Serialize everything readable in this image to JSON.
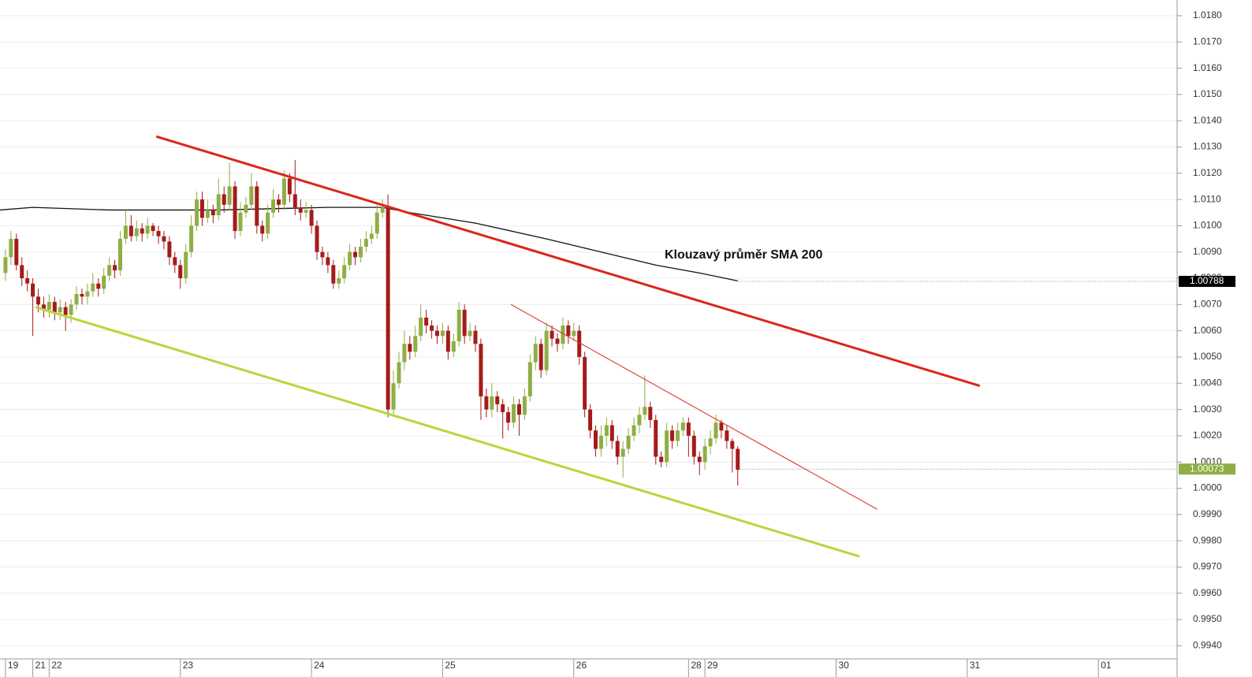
{
  "chart_data": {
    "type": "candlestick",
    "annotation": "Klouzavý průměr SMA 200",
    "xlim": [
      0,
      215.4
    ],
    "ylim": [
      0.9935,
      1.0186
    ],
    "xticks": [
      {
        "value": 1,
        "label": "19"
      },
      {
        "value": 6,
        "label": "21"
      },
      {
        "value": 9,
        "label": "22"
      },
      {
        "value": 33,
        "label": "23"
      },
      {
        "value": 57,
        "label": "24"
      },
      {
        "value": 81,
        "label": "25"
      },
      {
        "value": 105,
        "label": "26"
      },
      {
        "value": 126,
        "label": "28"
      },
      {
        "value": 129,
        "label": "29"
      },
      {
        "value": 153,
        "label": "30"
      },
      {
        "value": 177,
        "label": "31"
      },
      {
        "value": 201,
        "label": "01"
      }
    ],
    "yticks": [
      {
        "value": 1.018,
        "label": "1.0180"
      },
      {
        "value": 1.017,
        "label": "1.0170"
      },
      {
        "value": 1.016,
        "label": "1.0160"
      },
      {
        "value": 1.015,
        "label": "1.0150"
      },
      {
        "value": 1.014,
        "label": "1.0140"
      },
      {
        "value": 1.013,
        "label": "1.0130"
      },
      {
        "value": 1.012,
        "label": "1.0120"
      },
      {
        "value": 1.011,
        "label": "1.0110"
      },
      {
        "value": 1.01,
        "label": "1.0100"
      },
      {
        "value": 1.009,
        "label": "1.0090"
      },
      {
        "value": 1.008,
        "label": "1.0080"
      },
      {
        "value": 1.007,
        "label": "1.0070"
      },
      {
        "value": 1.006,
        "label": "1.0060"
      },
      {
        "value": 1.005,
        "label": "1.0050"
      },
      {
        "value": 1.004,
        "label": "1.0040"
      },
      {
        "value": 1.003,
        "label": "1.0030"
      },
      {
        "value": 1.002,
        "label": "1.0020"
      },
      {
        "value": 1.001,
        "label": "1.0010"
      },
      {
        "value": 1.0,
        "label": "1.0000"
      },
      {
        "value": 0.999,
        "label": "0.9990"
      },
      {
        "value": 0.998,
        "label": "0.9980"
      },
      {
        "value": 0.997,
        "label": "0.9970"
      },
      {
        "value": 0.996,
        "label": "0.9960"
      },
      {
        "value": 0.995,
        "label": "0.9950"
      },
      {
        "value": 0.994,
        "label": "0.9940"
      }
    ],
    "grid": true,
    "up_color": "#8fae45",
    "down_color": "#a51b1b",
    "x": [
      1,
      2,
      3,
      4,
      5,
      6,
      7,
      8,
      9,
      10,
      11,
      12,
      13,
      14,
      15,
      16,
      17,
      18,
      19,
      20,
      21,
      22,
      23,
      24,
      25,
      26,
      27,
      28,
      29,
      30,
      31,
      32,
      33,
      34,
      35,
      36,
      37,
      38,
      39,
      40,
      41,
      42,
      43,
      44,
      45,
      46,
      47,
      48,
      49,
      50,
      51,
      52,
      53,
      54,
      55,
      56,
      57,
      58,
      59,
      60,
      61,
      62,
      63,
      64,
      65,
      66,
      67,
      68,
      69,
      70,
      71,
      72,
      73,
      74,
      75,
      76,
      77,
      78,
      79,
      80,
      81,
      82,
      83,
      84,
      85,
      86,
      87,
      88,
      89,
      90,
      91,
      92,
      93,
      94,
      95,
      96,
      97,
      98,
      99,
      100,
      101,
      102,
      103,
      104,
      105,
      106,
      107,
      108,
      109,
      110,
      111,
      112,
      113,
      114,
      115,
      116,
      117,
      118,
      119,
      120,
      121,
      122,
      123,
      124,
      125,
      126,
      127,
      128,
      129,
      130,
      131,
      132,
      133,
      134,
      135
    ],
    "open": [
      1.0082,
      1.0088,
      1.0095,
      1.0085,
      1.008,
      1.0078,
      1.0073,
      1.007,
      1.0068,
      1.0071,
      1.0067,
      1.0069,
      1.0066,
      1.007,
      1.0074,
      1.0073,
      1.0075,
      1.0078,
      1.0076,
      1.0081,
      1.0085,
      1.0083,
      1.0095,
      1.01,
      1.0096,
      1.0099,
      1.0097,
      1.01,
      1.0098,
      1.0096,
      1.0094,
      1.0088,
      1.0085,
      1.008,
      1.009,
      1.01,
      1.011,
      1.0103,
      1.0106,
      1.0104,
      1.0112,
      1.0108,
      1.0115,
      1.0098,
      1.0105,
      1.0108,
      1.0115,
      1.01,
      1.0097,
      1.0105,
      1.011,
      1.0108,
      1.0118,
      1.0112,
      1.0107,
      1.0105,
      1.0106,
      1.01,
      1.009,
      1.0088,
      1.0085,
      1.0078,
      1.008,
      1.0085,
      1.009,
      1.0088,
      1.0092,
      1.0095,
      1.0097,
      1.0105,
      1.0107,
      1.003,
      1.004,
      1.0048,
      1.0055,
      1.0052,
      1.0058,
      1.0065,
      1.0062,
      1.006,
      1.0058,
      1.006,
      1.0052,
      1.0056,
      1.0068,
      1.0058,
      1.006,
      1.0055,
      1.0035,
      1.003,
      1.0035,
      1.0032,
      1.0029,
      1.0025,
      1.0032,
      1.0028,
      1.0035,
      1.0048,
      1.0055,
      1.0045,
      1.006,
      1.0057,
      1.0055,
      1.0062,
      1.0058,
      1.006,
      1.005,
      1.003,
      1.0022,
      1.0015,
      1.002,
      1.0024,
      1.0018,
      1.0012,
      1.0015,
      1.002,
      1.0024,
      1.0028,
      1.0031,
      1.0026,
      1.0012,
      1.001,
      1.0022,
      1.0018,
      1.0022,
      1.0025,
      1.002,
      1.0012,
      1.001,
      1.0016,
      1.0019,
      1.0025,
      1.0022,
      1.0018,
      1.0015
    ],
    "high": [
      1.0091,
      1.0098,
      1.0097,
      1.0088,
      1.0083,
      1.008,
      1.0076,
      1.0073,
      1.0074,
      1.0073,
      1.0072,
      1.0071,
      1.0072,
      1.0077,
      1.0076,
      1.0078,
      1.0082,
      1.008,
      1.0084,
      1.0088,
      1.0087,
      1.0098,
      1.0106,
      1.0104,
      1.0102,
      1.0101,
      1.0103,
      1.0101,
      1.01,
      1.0098,
      1.0096,
      1.009,
      1.0087,
      1.0093,
      1.0104,
      1.0113,
      1.0113,
      1.011,
      1.0108,
      1.0118,
      1.0115,
      1.0124,
      1.0117,
      1.0109,
      1.0111,
      1.012,
      1.0117,
      1.0102,
      1.0108,
      1.0114,
      1.0112,
      1.0121,
      1.012,
      1.0125,
      1.011,
      1.0109,
      1.0108,
      1.0102,
      1.0092,
      1.009,
      1.0087,
      1.0083,
      1.0088,
      1.0093,
      1.0092,
      1.0095,
      1.0098,
      1.01,
      1.0108,
      1.011,
      1.0112,
      1.0045,
      1.0052,
      1.006,
      1.0058,
      1.0062,
      1.007,
      1.0068,
      1.0064,
      1.0062,
      1.0063,
      1.0062,
      1.0059,
      1.0071,
      1.007,
      1.0063,
      1.0062,
      1.0057,
      1.0038,
      1.004,
      1.0037,
      1.0034,
      1.0031,
      1.0035,
      1.0034,
      1.0038,
      1.0051,
      1.0058,
      1.0057,
      1.0063,
      1.0062,
      1.0059,
      1.0065,
      1.0064,
      1.0063,
      1.0062,
      1.0052,
      1.0032,
      1.0024,
      1.0024,
      1.0027,
      1.0026,
      1.002,
      1.0018,
      1.0023,
      1.0027,
      1.0031,
      1.0043,
      1.0033,
      1.0028,
      1.0014,
      1.0025,
      1.0024,
      1.0025,
      1.0027,
      1.0027,
      1.0022,
      1.0014,
      1.0019,
      1.0022,
      1.0028,
      1.0026,
      1.0024,
      1.0019,
      1.0016
    ],
    "low": [
      1.0079,
      1.0085,
      1.0083,
      1.0077,
      1.0075,
      1.0058,
      1.0067,
      1.0065,
      1.0065,
      1.0064,
      1.0064,
      1.006,
      1.0063,
      1.0068,
      1.007,
      1.007,
      1.0073,
      1.0073,
      1.0074,
      1.0079,
      1.008,
      1.0081,
      1.0093,
      1.0094,
      1.0094,
      1.0094,
      1.0095,
      1.0096,
      1.0093,
      1.0091,
      1.0085,
      1.0082,
      1.0076,
      1.0078,
      1.0088,
      1.0098,
      1.01,
      1.0101,
      1.0101,
      1.0102,
      1.0105,
      1.0106,
      1.0095,
      1.0096,
      1.0103,
      1.0106,
      1.0097,
      1.0094,
      1.0095,
      1.0103,
      1.0105,
      1.0106,
      1.0109,
      1.0104,
      1.0102,
      1.0103,
      1.0097,
      1.0087,
      1.0085,
      1.0082,
      1.0076,
      1.0076,
      1.0078,
      1.0083,
      1.0085,
      1.0086,
      1.009,
      1.0093,
      1.0095,
      1.0103,
      1.0027,
      1.0028,
      1.0038,
      1.0045,
      1.0049,
      1.005,
      1.0056,
      1.0059,
      1.0057,
      1.0055,
      1.0055,
      1.0049,
      1.005,
      1.0054,
      1.0055,
      1.0056,
      1.0052,
      1.0026,
      1.0027,
      1.0027,
      1.0029,
      1.0019,
      1.0022,
      1.0023,
      1.002,
      1.0026,
      1.0033,
      1.0045,
      1.0042,
      1.0043,
      1.0054,
      1.0052,
      1.0053,
      1.0055,
      1.0056,
      1.0047,
      1.0027,
      1.0019,
      1.0012,
      1.0012,
      1.0016,
      1.0015,
      1.0009,
      1.0004,
      1.0013,
      1.0018,
      1.0021,
      1.0026,
      1.0023,
      1.0009,
      1.0008,
      1.0008,
      1.0015,
      1.0016,
      1.002,
      1.0012,
      1.0009,
      1.0005,
      1.0007,
      1.0013,
      1.0017,
      1.0019,
      1.0015,
      1.0006,
      1.0001
    ],
    "close": [
      1.0088,
      1.0095,
      1.0085,
      1.008,
      1.0078,
      1.0073,
      1.007,
      1.0068,
      1.0071,
      1.0067,
      1.0069,
      1.0066,
      1.007,
      1.0074,
      1.0073,
      1.0075,
      1.0078,
      1.0076,
      1.0081,
      1.0085,
      1.0083,
      1.0095,
      1.01,
      1.0096,
      1.0099,
      1.0097,
      1.01,
      1.0098,
      1.0096,
      1.0094,
      1.0088,
      1.0085,
      1.008,
      1.009,
      1.01,
      1.011,
      1.0103,
      1.0106,
      1.0104,
      1.0112,
      1.0108,
      1.0115,
      1.0098,
      1.0105,
      1.0108,
      1.0115,
      1.01,
      1.0097,
      1.0105,
      1.011,
      1.0108,
      1.0118,
      1.0112,
      1.0107,
      1.0105,
      1.0106,
      1.01,
      1.009,
      1.0088,
      1.0085,
      1.0078,
      1.008,
      1.0085,
      1.009,
      1.0088,
      1.0092,
      1.0095,
      1.0097,
      1.0105,
      1.0107,
      1.003,
      1.004,
      1.0048,
      1.0055,
      1.0052,
      1.0058,
      1.0065,
      1.0062,
      1.006,
      1.0058,
      1.006,
      1.0052,
      1.0056,
      1.0068,
      1.0058,
      1.006,
      1.0055,
      1.0035,
      1.003,
      1.0035,
      1.0032,
      1.0029,
      1.0025,
      1.0032,
      1.0028,
      1.0035,
      1.0048,
      1.0055,
      1.0045,
      1.006,
      1.0057,
      1.0055,
      1.0062,
      1.0058,
      1.006,
      1.005,
      1.003,
      1.0022,
      1.0015,
      1.002,
      1.0024,
      1.0018,
      1.0012,
      1.0015,
      1.002,
      1.0024,
      1.0028,
      1.0031,
      1.0026,
      1.0012,
      1.001,
      1.0022,
      1.0018,
      1.0022,
      1.0025,
      1.002,
      1.0012,
      1.001,
      1.0016,
      1.0019,
      1.0025,
      1.0022,
      1.0018,
      1.0015,
      1.0007
    ],
    "sma": {
      "color": "#111111",
      "x": [
        0,
        6,
        20,
        40,
        60,
        70,
        75,
        87,
        100,
        110,
        120,
        128,
        135
      ],
      "values": [
        1.0106,
        1.0107,
        1.0106,
        1.0106,
        1.0107,
        1.0107,
        1.0105,
        1.0101,
        1.0095,
        1.009,
        1.0085,
        1.0082,
        1.0079
      ]
    },
    "sma_last": {
      "value": 1.00788,
      "label": "1.00788",
      "color": "#000000"
    },
    "price_last": {
      "value": 1.00073,
      "label": "1.00073",
      "color": "#8fae45"
    },
    "trendlines": [
      {
        "color": "#d9261c",
        "x": [
          28.6,
          179.3
        ],
        "values": [
          1.0134,
          1.0039
        ]
      },
      {
        "color": "#b5d83a",
        "x": [
          6.5,
          157.3
        ],
        "values": [
          1.0069,
          0.9974
        ]
      },
      {
        "color": "#d9261c",
        "x": [
          93.5,
          160.5
        ],
        "values": [
          1.007,
          0.9992
        ]
      }
    ]
  }
}
